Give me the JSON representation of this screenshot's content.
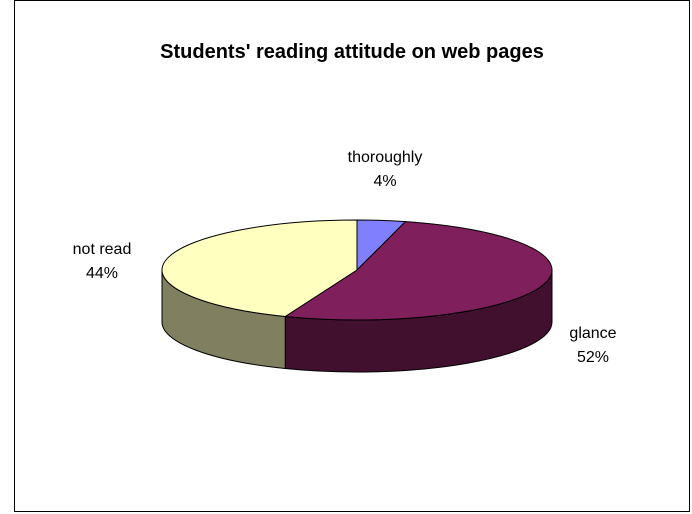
{
  "chart_data": {
    "type": "pie",
    "title": "Students' reading attitude on web pages",
    "slices": [
      {
        "label": "thoroughly",
        "value": 4,
        "pct_label": "4%",
        "color": "#8080FF"
      },
      {
        "label": "glance",
        "value": 52,
        "pct_label": "52%",
        "color": "#7F1F5C"
      },
      {
        "label": "not read",
        "value": 44,
        "pct_label": "44%",
        "color": "#FFFFC0"
      }
    ],
    "style": "3d",
    "legend": "none"
  }
}
